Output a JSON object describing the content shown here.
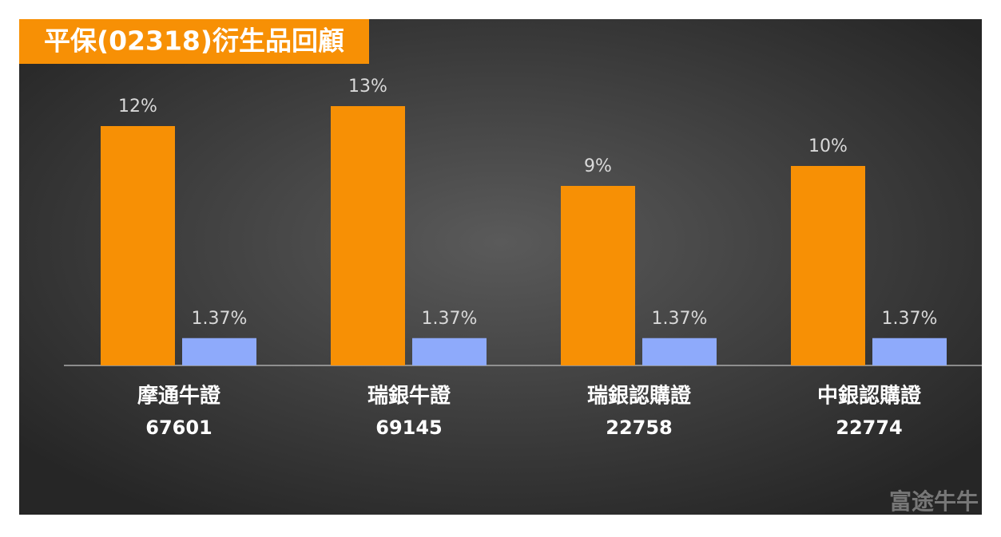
{
  "chart_data": {
    "type": "bar",
    "title": "平保(02318)衍生品回顧",
    "categories": [
      [
        "摩通牛證",
        "67601"
      ],
      [
        "瑞銀牛證",
        "69145"
      ],
      [
        "瑞銀認購證",
        "22758"
      ],
      [
        "中銀認購證",
        "22774"
      ]
    ],
    "series": [
      {
        "color": "#f79005",
        "values": [
          12,
          13,
          9,
          10
        ],
        "value_labels": [
          "12%",
          "13%",
          "9%",
          "10%"
        ]
      },
      {
        "color": "#8eaafb",
        "values": [
          1.37,
          1.37,
          1.37,
          1.37
        ],
        "value_labels": [
          "1.37%",
          "1.37%",
          "1.37%",
          "1.37%"
        ]
      }
    ],
    "ylim": [
      0,
      15
    ],
    "watermark": "富途牛牛"
  }
}
